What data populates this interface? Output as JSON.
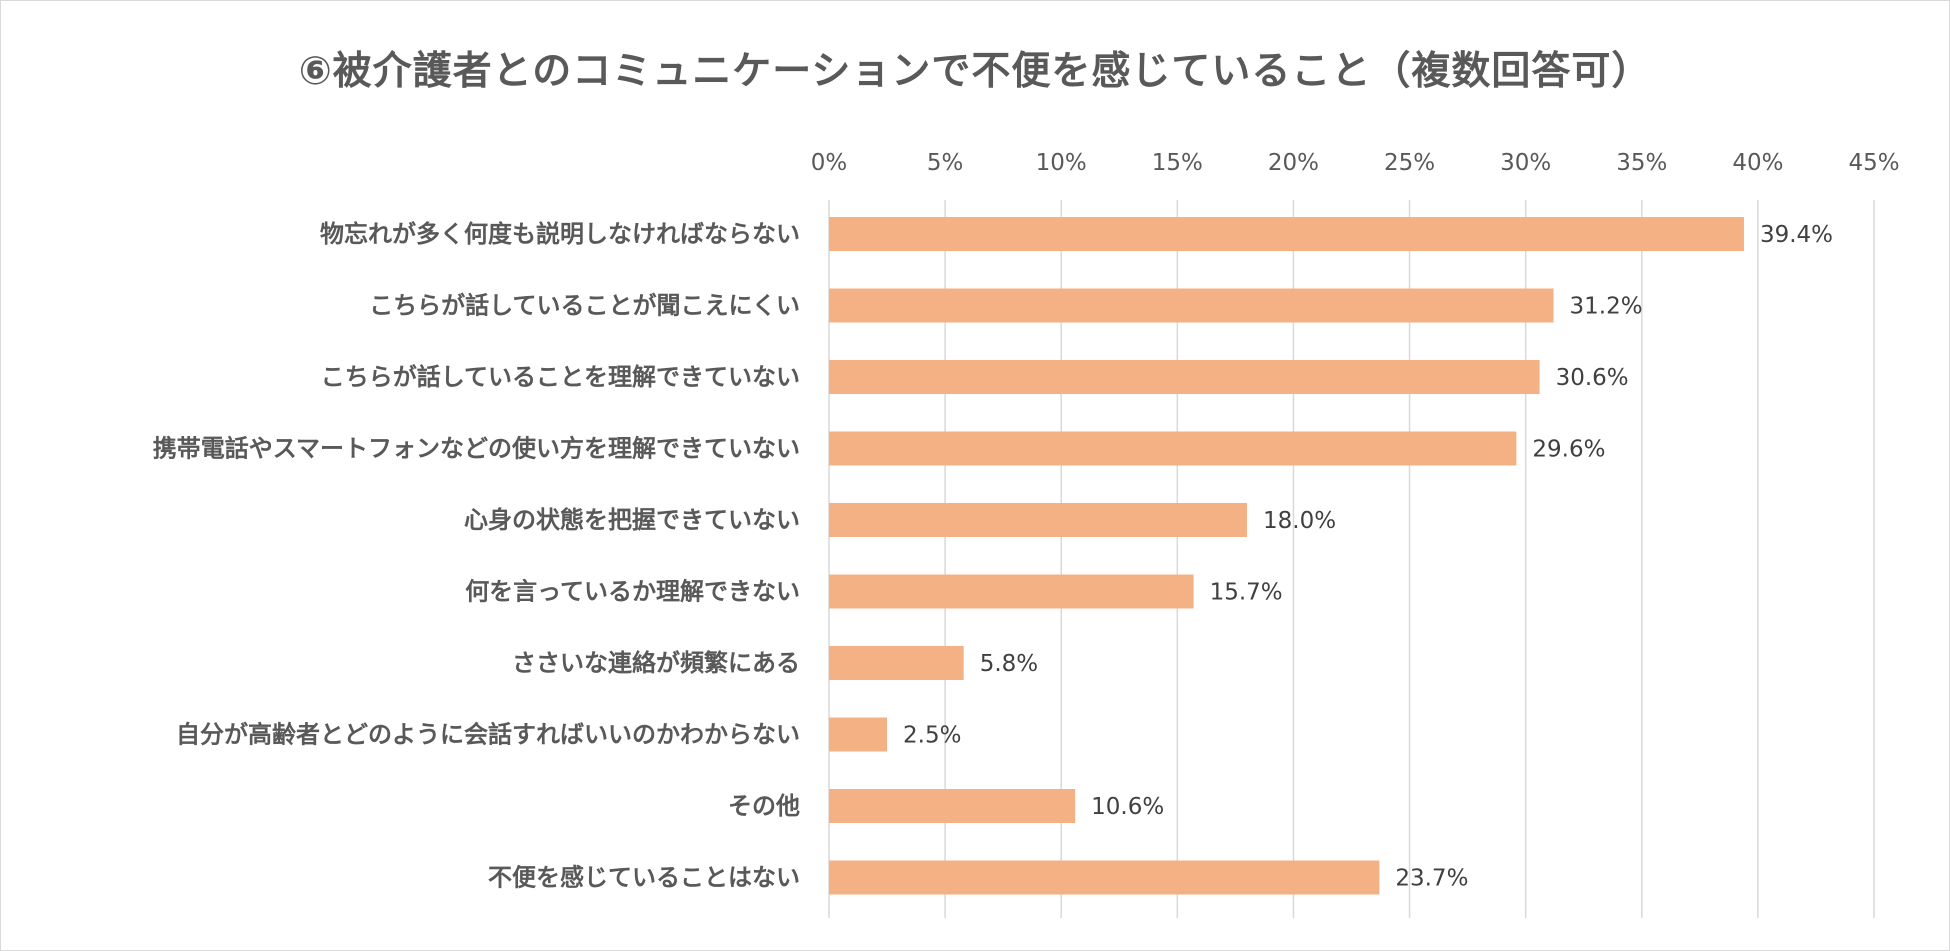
{
  "chart_data": {
    "type": "bar",
    "orientation": "horizontal",
    "title": "⑥被介護者とのコミュニケーションで不便を感じていること（複数回答可）",
    "xlabel": "",
    "ylabel": "",
    "xlim": [
      0,
      45
    ],
    "ticks": [
      0,
      5,
      10,
      15,
      20,
      25,
      30,
      35,
      40,
      45
    ],
    "tick_labels": [
      "0%",
      "5%",
      "10%",
      "15%",
      "20%",
      "25%",
      "30%",
      "35%",
      "40%",
      "45%"
    ],
    "grid": true,
    "legend": "none",
    "bar_color": "#f4b183",
    "categories": [
      "物忘れが多く何度も説明しなければならない",
      "こちらが話していることが聞こえにくい",
      "こちらが話していることを理解できていない",
      "携帯電話やスマートフォンなどの使い方を理解できていない",
      "心身の状態を把握できていない",
      "何を言っているか理解できない",
      "ささいな連絡が頻繁にある",
      "自分が高齢者とどのように会話すればいいのかわからない",
      "その他",
      "不便を感じていることはない"
    ],
    "values": [
      39.4,
      31.2,
      30.6,
      29.6,
      18.0,
      15.7,
      5.8,
      2.5,
      10.6,
      23.7
    ],
    "value_labels": [
      "39.4%",
      "31.2%",
      "30.6%",
      "29.6%",
      "18.0%",
      "15.7%",
      "5.8%",
      "2.5%",
      "10.6%",
      "23.7%"
    ]
  }
}
